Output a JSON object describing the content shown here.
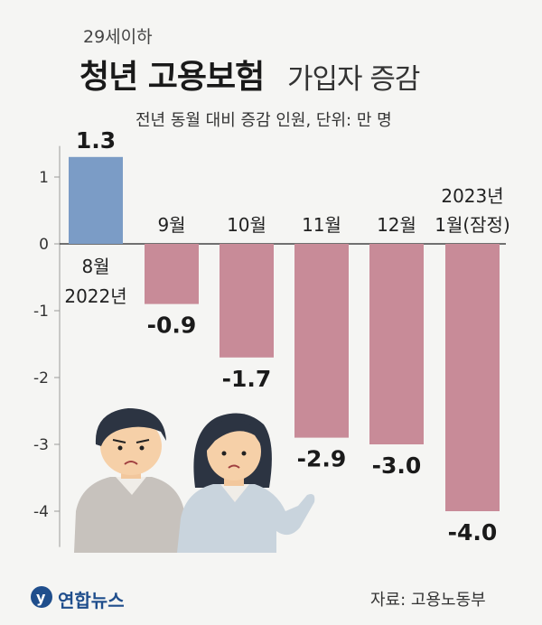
{
  "header": {
    "pre_title": "29세이하",
    "title_bold": "청년 고용보험",
    "title_light": "가입자 증감",
    "subtitle": "전년 동월 대비 증감 인원, 단위: 만 명"
  },
  "footer": {
    "logo": "연합뉴스",
    "source": "자료: 고용노동부"
  },
  "colors": {
    "positive": "#7b9cc6",
    "negative": "#c88b98",
    "background": "#f5f5f3"
  },
  "chart_data": {
    "type": "bar",
    "categories": [
      [
        "8월",
        "2022년"
      ],
      [
        "9월"
      ],
      [
        "10월"
      ],
      [
        "11월"
      ],
      [
        "12월"
      ],
      [
        "2023년",
        "1월(잠정)"
      ]
    ],
    "values": [
      1.3,
      -0.9,
      -1.7,
      -2.9,
      -3.0,
      -4.0
    ],
    "value_labels": [
      "1.3",
      "-0.9",
      "-1.7",
      "-2.9",
      "-3.0",
      "-4.0"
    ],
    "y_ticks": [
      "1",
      "0",
      "-1",
      "-2",
      "-3",
      "-4"
    ],
    "y_tick_values": [
      1,
      0,
      -1,
      -2,
      -3,
      -4
    ],
    "ylim": [
      -4.4,
      1.6
    ],
    "grid": false
  },
  "illustration": {
    "description": "two young people, a man and a woman, with worried expressions"
  }
}
